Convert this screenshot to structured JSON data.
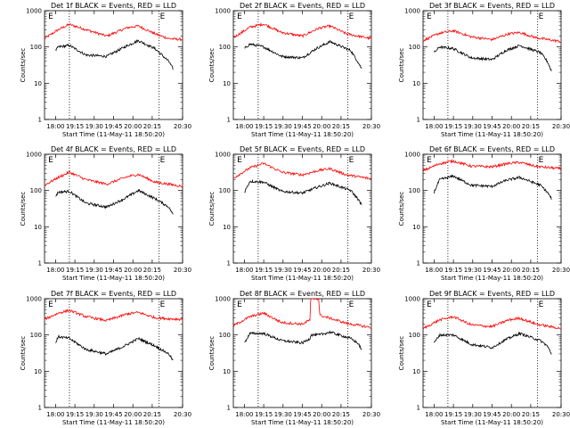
{
  "figure": {
    "start_time_label": "Start Time (11-May-11 18:50:20)",
    "ylabel": "Counts/sec",
    "yticks": [
      1,
      10,
      100,
      1000
    ],
    "ytick_labels": [
      "1",
      "10",
      "100",
      "1000"
    ],
    "event_marker": "E"
  },
  "chart_data": [
    {
      "type": "line",
      "title": "Det 1f BLACK = Events, RED = LLD",
      "xlabel": "Start Time (11-May-11 18:50:20)",
      "ylabel": "Counts/sec",
      "y_scale": "log",
      "ylim": [
        1,
        1000
      ],
      "x_ticks": [
        "18:00",
        "19:15",
        "19:30",
        "19:45",
        "20:00",
        "20:15",
        "20:30"
      ],
      "event_markers": [
        "E",
        "E"
      ],
      "series": [
        {
          "color": "#ff0000",
          "points": [
            [
              0,
              170
            ],
            [
              0.1,
              300
            ],
            [
              0.18,
              420
            ],
            [
              0.3,
              300
            ],
            [
              0.45,
              200
            ],
            [
              0.6,
              340
            ],
            [
              0.68,
              380
            ],
            [
              0.8,
              230
            ],
            [
              0.9,
              170
            ],
            [
              1,
              160
            ]
          ]
        },
        {
          "color": "#000000",
          "points": [
            [
              0.08,
              80
            ],
            [
              0.1,
              100
            ],
            [
              0.18,
              110
            ],
            [
              0.3,
              60
            ],
            [
              0.45,
              55
            ],
            [
              0.58,
              100
            ],
            [
              0.68,
              150
            ],
            [
              0.8,
              90
            ],
            [
              0.9,
              40
            ],
            [
              0.93,
              25
            ]
          ]
        }
      ]
    },
    {
      "type": "line",
      "title": "Det 2f BLACK = Events, RED = LLD",
      "xlabel": "Start Time (11-May-11 18:50:20)",
      "ylabel": "Counts/sec",
      "y_scale": "log",
      "ylim": [
        1,
        1000
      ],
      "x_ticks": [
        "18:00",
        "19:15",
        "19:30",
        "19:45",
        "20:00",
        "20:15",
        "20:30"
      ],
      "event_markers": [
        "E",
        "E"
      ],
      "series": [
        {
          "color": "#ff0000",
          "points": [
            [
              0,
              180
            ],
            [
              0.12,
              350
            ],
            [
              0.22,
              430
            ],
            [
              0.35,
              250
            ],
            [
              0.5,
              200
            ],
            [
              0.62,
              330
            ],
            [
              0.7,
              380
            ],
            [
              0.82,
              230
            ],
            [
              1,
              170
            ]
          ]
        },
        {
          "color": "#000000",
          "points": [
            [
              0.08,
              90
            ],
            [
              0.12,
              120
            ],
            [
              0.22,
              100
            ],
            [
              0.35,
              55
            ],
            [
              0.5,
              50
            ],
            [
              0.6,
              90
            ],
            [
              0.7,
              140
            ],
            [
              0.85,
              80
            ],
            [
              0.9,
              40
            ],
            [
              0.93,
              25
            ]
          ]
        }
      ]
    },
    {
      "type": "line",
      "title": "Det 3f BLACK = Events, RED = LLD",
      "xlabel": "Start Time (11-May-11 18:50:20)",
      "ylabel": "Counts/sec",
      "y_scale": "log",
      "ylim": [
        1,
        1000
      ],
      "x_ticks": [
        "18:00",
        "19:15",
        "19:30",
        "19:45",
        "20:00",
        "20:15",
        "20:30"
      ],
      "event_markers": [
        "E",
        "E"
      ],
      "series": [
        {
          "color": "#ff0000",
          "points": [
            [
              0,
              150
            ],
            [
              0.12,
              240
            ],
            [
              0.22,
              280
            ],
            [
              0.35,
              190
            ],
            [
              0.5,
              160
            ],
            [
              0.62,
              230
            ],
            [
              0.7,
              250
            ],
            [
              0.82,
              180
            ],
            [
              1,
              140
            ]
          ]
        },
        {
          "color": "#000000",
          "points": [
            [
              0.08,
              70
            ],
            [
              0.12,
              100
            ],
            [
              0.22,
              90
            ],
            [
              0.35,
              50
            ],
            [
              0.5,
              45
            ],
            [
              0.6,
              80
            ],
            [
              0.7,
              110
            ],
            [
              0.85,
              70
            ],
            [
              0.9,
              40
            ],
            [
              0.93,
              22
            ]
          ]
        }
      ]
    },
    {
      "type": "line",
      "title": "Det 4f BLACK = Events, RED = LLD",
      "xlabel": "Start Time (11-May-11 18:50:20)",
      "ylabel": "Counts/sec",
      "y_scale": "log",
      "ylim": [
        1,
        1000
      ],
      "x_ticks": [
        "18:00",
        "19:15",
        "19:30",
        "19:45",
        "20:00",
        "20:15",
        "20:30"
      ],
      "event_markers": [
        "E",
        "E"
      ],
      "series": [
        {
          "color": "#ff0000",
          "points": [
            [
              0,
              140
            ],
            [
              0.1,
              230
            ],
            [
              0.18,
              320
            ],
            [
              0.3,
              200
            ],
            [
              0.45,
              150
            ],
            [
              0.6,
              240
            ],
            [
              0.68,
              280
            ],
            [
              0.8,
              170
            ],
            [
              0.9,
              150
            ],
            [
              1,
              130
            ]
          ]
        },
        {
          "color": "#000000",
          "points": [
            [
              0.08,
              70
            ],
            [
              0.1,
              90
            ],
            [
              0.18,
              95
            ],
            [
              0.3,
              45
            ],
            [
              0.45,
              35
            ],
            [
              0.58,
              60
            ],
            [
              0.68,
              100
            ],
            [
              0.8,
              60
            ],
            [
              0.9,
              35
            ],
            [
              0.93,
              22
            ]
          ]
        }
      ]
    },
    {
      "type": "line",
      "title": "Det 5f BLACK = Events, RED = LLD",
      "xlabel": "Start Time (11-May-11 18:50:20)",
      "ylabel": "Counts/sec",
      "y_scale": "log",
      "ylim": [
        1,
        1000
      ],
      "x_ticks": [
        "18:00",
        "19:15",
        "19:30",
        "19:45",
        "20:00",
        "20:15",
        "20:30"
      ],
      "event_markers": [
        "E",
        "E"
      ],
      "series": [
        {
          "color": "#ff0000",
          "points": [
            [
              0,
              220
            ],
            [
              0.12,
              420
            ],
            [
              0.22,
              560
            ],
            [
              0.35,
              320
            ],
            [
              0.5,
              270
            ],
            [
              0.62,
              360
            ],
            [
              0.7,
              400
            ],
            [
              0.82,
              270
            ],
            [
              1,
              210
            ]
          ]
        },
        {
          "color": "#000000",
          "points": [
            [
              0.08,
              90
            ],
            [
              0.12,
              180
            ],
            [
              0.22,
              170
            ],
            [
              0.35,
              95
            ],
            [
              0.5,
              85
            ],
            [
              0.6,
              120
            ],
            [
              0.7,
              160
            ],
            [
              0.85,
              100
            ],
            [
              0.9,
              60
            ],
            [
              0.93,
              40
            ]
          ]
        }
      ]
    },
    {
      "type": "line",
      "title": "Det 6f BLACK = Events, RED = LLD",
      "xlabel": "Start Time (11-May-11 18:50:20)",
      "ylabel": "Counts/sec",
      "y_scale": "log",
      "ylim": [
        1,
        1000
      ],
      "x_ticks": [
        "18:00",
        "19:15",
        "19:30",
        "19:45",
        "20:00",
        "20:15",
        "20:30"
      ],
      "event_markers": [
        "E",
        "E"
      ],
      "series": [
        {
          "color": "#ff0000",
          "points": [
            [
              0,
              350
            ],
            [
              0.12,
              550
            ],
            [
              0.22,
              650
            ],
            [
              0.35,
              470
            ],
            [
              0.5,
              450
            ],
            [
              0.62,
              560
            ],
            [
              0.7,
              600
            ],
            [
              0.82,
              460
            ],
            [
              1,
              400
            ]
          ]
        },
        {
          "color": "#000000",
          "points": [
            [
              0.08,
              90
            ],
            [
              0.12,
              200
            ],
            [
              0.22,
              250
            ],
            [
              0.35,
              140
            ],
            [
              0.5,
              130
            ],
            [
              0.6,
              190
            ],
            [
              0.7,
              230
            ],
            [
              0.85,
              140
            ],
            [
              0.9,
              90
            ],
            [
              0.93,
              60
            ]
          ]
        }
      ]
    },
    {
      "type": "line",
      "title": "Det 7f BLACK = Events, RED = LLD",
      "xlabel": "Start Time (11-May-11 18:50:20)",
      "ylabel": "Counts/sec",
      "y_scale": "log",
      "ylim": [
        1,
        1000
      ],
      "x_ticks": [
        "18:00",
        "19:15",
        "19:30",
        "19:45",
        "20:00",
        "20:15",
        "20:30"
      ],
      "event_markers": [
        "E",
        "E"
      ],
      "series": [
        {
          "color": "#ff0000",
          "points": [
            [
              0,
              270
            ],
            [
              0.1,
              400
            ],
            [
              0.18,
              480
            ],
            [
              0.3,
              320
            ],
            [
              0.45,
              250
            ],
            [
              0.6,
              380
            ],
            [
              0.68,
              420
            ],
            [
              0.8,
              300
            ],
            [
              0.9,
              280
            ],
            [
              1,
              270
            ]
          ]
        },
        {
          "color": "#000000",
          "points": [
            [
              0.08,
              60
            ],
            [
              0.1,
              90
            ],
            [
              0.18,
              80
            ],
            [
              0.3,
              40
            ],
            [
              0.45,
              30
            ],
            [
              0.58,
              50
            ],
            [
              0.68,
              80
            ],
            [
              0.8,
              50
            ],
            [
              0.9,
              30
            ],
            [
              0.93,
              20
            ]
          ]
        }
      ]
    },
    {
      "type": "line",
      "title": "Det 8f BLACK = Events, RED = LLD",
      "xlabel": "Start Time (11-May-11 18:50:20)",
      "ylabel": "Counts/sec",
      "y_scale": "log",
      "ylim": [
        1,
        1000
      ],
      "x_ticks": [
        "18:00",
        "19:15",
        "19:30",
        "19:45",
        "20:00",
        "20:15",
        "20:30"
      ],
      "event_markers": [
        "E",
        "E"
      ],
      "series": [
        {
          "color": "#ff0000",
          "points": [
            [
              0,
              180
            ],
            [
              0.12,
              320
            ],
            [
              0.22,
              400
            ],
            [
              0.35,
              220
            ],
            [
              0.5,
              200
            ],
            [
              0.555,
              260
            ],
            [
              0.56,
              1000
            ],
            [
              0.62,
              1000
            ],
            [
              0.625,
              350
            ],
            [
              0.7,
              290
            ],
            [
              0.82,
              210
            ],
            [
              1,
              160
            ]
          ]
        },
        {
          "color": "#000000",
          "points": [
            [
              0.08,
              60
            ],
            [
              0.12,
              110
            ],
            [
              0.22,
              110
            ],
            [
              0.35,
              70
            ],
            [
              0.5,
              60
            ],
            [
              0.555,
              80
            ],
            [
              0.56,
              100
            ],
            [
              0.62,
              100
            ],
            [
              0.7,
              120
            ],
            [
              0.85,
              80
            ],
            [
              0.9,
              60
            ],
            [
              0.93,
              40
            ]
          ]
        }
      ]
    },
    {
      "type": "line",
      "title": "Det 9f BLACK = Events, RED = LLD",
      "xlabel": "Start Time (11-May-11 18:50:20)",
      "ylabel": "Counts/sec",
      "y_scale": "log",
      "ylim": [
        1,
        1000
      ],
      "x_ticks": [
        "18:00",
        "19:15",
        "19:30",
        "19:45",
        "20:00",
        "20:15",
        "20:30"
      ],
      "event_markers": [
        "E",
        "E"
      ],
      "series": [
        {
          "color": "#ff0000",
          "points": [
            [
              0,
              150
            ],
            [
              0.12,
              260
            ],
            [
              0.22,
              320
            ],
            [
              0.35,
              190
            ],
            [
              0.5,
              170
            ],
            [
              0.62,
              260
            ],
            [
              0.7,
              290
            ],
            [
              0.82,
              200
            ],
            [
              1,
              150
            ]
          ]
        },
        {
          "color": "#000000",
          "points": [
            [
              0.08,
              60
            ],
            [
              0.12,
              100
            ],
            [
              0.22,
              100
            ],
            [
              0.35,
              55
            ],
            [
              0.5,
              45
            ],
            [
              0.6,
              75
            ],
            [
              0.7,
              110
            ],
            [
              0.85,
              70
            ],
            [
              0.9,
              50
            ],
            [
              0.93,
              30
            ]
          ]
        }
      ]
    }
  ]
}
